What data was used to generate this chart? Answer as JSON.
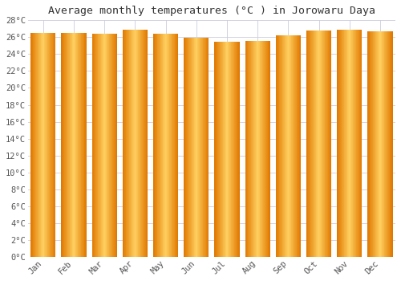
{
  "title": "Average monthly temperatures (°C ) in Jorowaru Daya",
  "months": [
    "Jan",
    "Feb",
    "Mar",
    "Apr",
    "May",
    "Jun",
    "Jul",
    "Aug",
    "Sep",
    "Oct",
    "Nov",
    "Dec"
  ],
  "values": [
    26.5,
    26.5,
    26.4,
    26.9,
    26.4,
    25.9,
    25.5,
    25.6,
    26.2,
    26.8,
    26.9,
    26.7
  ],
  "ylim": [
    0,
    28
  ],
  "yticks": [
    0,
    2,
    4,
    6,
    8,
    10,
    12,
    14,
    16,
    18,
    20,
    22,
    24,
    26,
    28
  ],
  "bar_color_light": "#FFD060",
  "bar_color_mid": "#FFA800",
  "bar_color_dark": "#E07800",
  "background_color": "#FFFFFF",
  "grid_color": "#CCCCDD",
  "title_fontsize": 9.5,
  "tick_fontsize": 7.5
}
